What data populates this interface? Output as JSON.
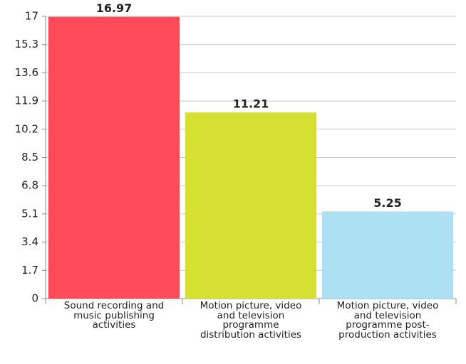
{
  "chart_data": {
    "type": "bar",
    "categories": [
      "Sound recording and music publishing activities",
      "Motion picture, video and television programme distribution activities",
      "Motion picture, video and television programme post-production activities"
    ],
    "values": [
      16.97,
      11.21,
      5.25
    ],
    "colors": [
      "#fe4a59",
      "#d5e032",
      "#ade0f2"
    ],
    "ylim": [
      0,
      17
    ],
    "yticks": [
      0,
      1.7,
      3.4,
      5.1,
      6.8,
      8.5,
      10.2,
      11.9,
      13.6,
      15.3,
      17
    ],
    "grid": true
  }
}
